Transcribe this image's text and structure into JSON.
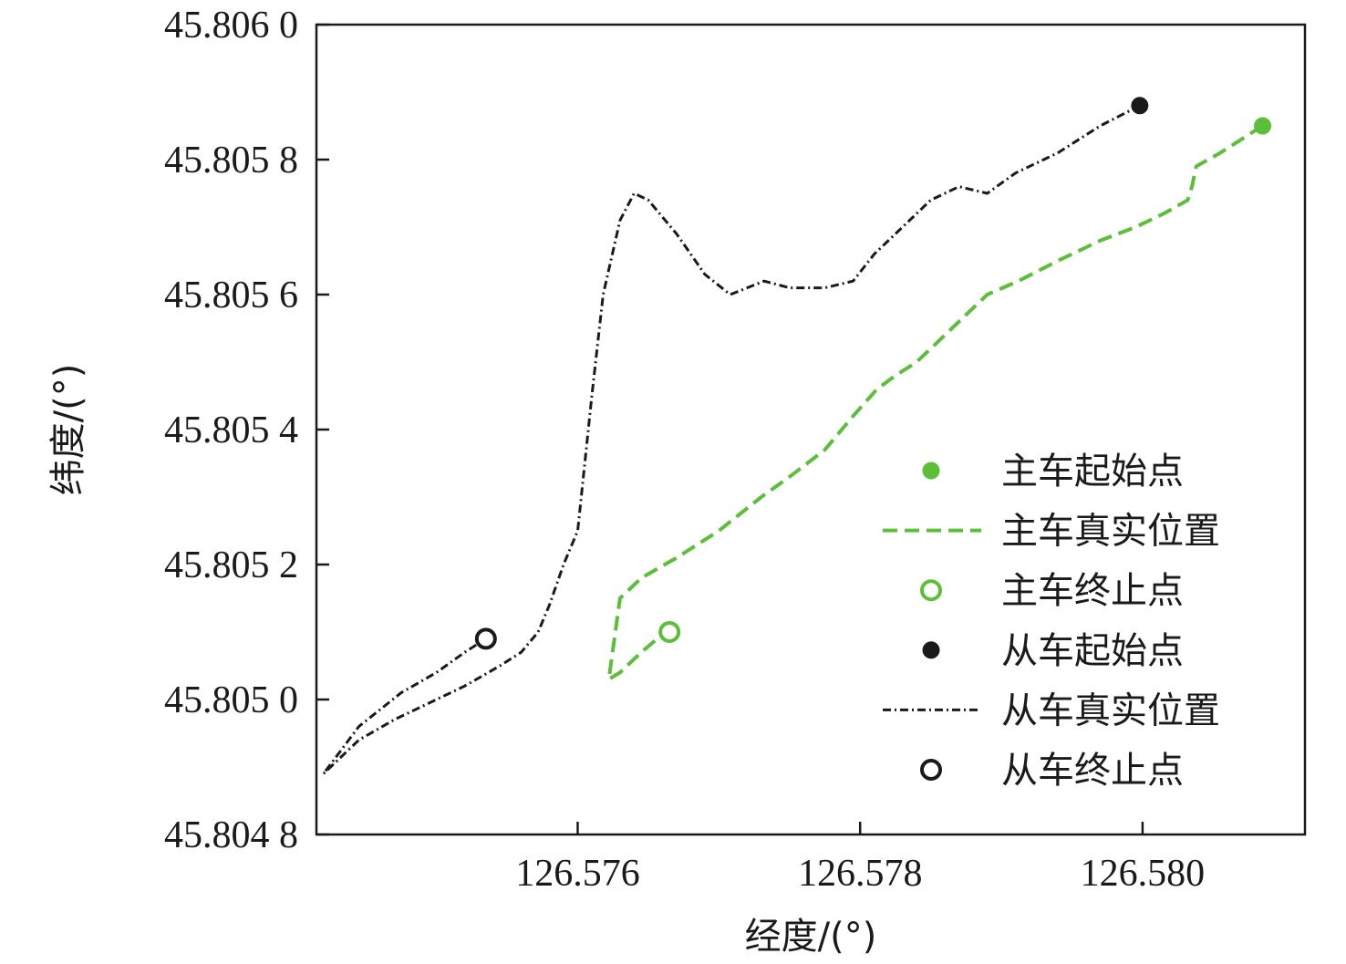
{
  "chart_data": {
    "type": "line",
    "xlabel": "经度/(°)",
    "ylabel": "纬度/(°)",
    "xlim": [
      126.57415,
      126.58115
    ],
    "ylim": [
      45.8048,
      45.806
    ],
    "x_ticks": [
      {
        "value": 126.576,
        "label": "126.576"
      },
      {
        "value": 126.578,
        "label": "126.578"
      },
      {
        "value": 126.58,
        "label": "126.580"
      }
    ],
    "y_ticks": [
      {
        "value": 45.8048,
        "label": "45.804 8"
      },
      {
        "value": 45.805,
        "label": "45.805 0"
      },
      {
        "value": 45.8052,
        "label": "45.805 2"
      },
      {
        "value": 45.8054,
        "label": "45.805 4"
      },
      {
        "value": 45.8056,
        "label": "45.805 6"
      },
      {
        "value": 45.8058,
        "label": "45.805 8"
      },
      {
        "value": 45.806,
        "label": "45.806 0"
      }
    ],
    "grid": false,
    "legend_position": "bottom-right",
    "series": [
      {
        "name": "主车真实位置",
        "style": "dashed",
        "color": "#5cbf3a",
        "points": [
          [
            126.58085,
            45.80585
          ],
          [
            126.58055,
            45.80581
          ],
          [
            126.58038,
            45.80579
          ],
          [
            126.58035,
            45.80576
          ],
          [
            126.58032,
            45.80574
          ],
          [
            126.58015,
            45.80572
          ],
          [
            126.57995,
            45.8057
          ],
          [
            126.5797,
            45.80568
          ],
          [
            126.5794,
            45.80565
          ],
          [
            126.57912,
            45.80562
          ],
          [
            126.5789,
            45.8056
          ],
          [
            126.57875,
            45.80557
          ],
          [
            126.57865,
            45.80555
          ],
          [
            126.57855,
            45.80553
          ],
          [
            126.5784,
            45.8055
          ],
          [
            126.57825,
            45.80548
          ],
          [
            126.57812,
            45.80546
          ],
          [
            126.57795,
            45.80542
          ],
          [
            126.57775,
            45.80537
          ],
          [
            126.5775,
            45.80533
          ],
          [
            126.5773,
            45.8053
          ],
          [
            126.577,
            45.80525
          ],
          [
            126.5767,
            45.80521
          ],
          [
            126.57645,
            45.80518
          ],
          [
            126.5763,
            45.80515
          ],
          [
            126.57622,
            45.80503
          ],
          [
            126.5763,
            45.80504
          ],
          [
            126.57645,
            45.80507
          ],
          [
            126.57662,
            45.8051
          ]
        ]
      },
      {
        "name": "从车真实位置",
        "style": "dashdot",
        "color": "#1a1a1a",
        "points": [
          [
            126.57998,
            45.80588
          ],
          [
            126.5797,
            45.80585
          ],
          [
            126.5794,
            45.80581
          ],
          [
            126.5791,
            45.80578
          ],
          [
            126.5789,
            45.80575
          ],
          [
            126.5787,
            45.80576
          ],
          [
            126.5785,
            45.80574
          ],
          [
            126.5783,
            45.8057
          ],
          [
            126.5781,
            45.80566
          ],
          [
            126.57795,
            45.80562
          ],
          [
            126.57775,
            45.80561
          ],
          [
            126.5775,
            45.80561
          ],
          [
            126.57732,
            45.80562
          ],
          [
            126.5772,
            45.80561
          ],
          [
            126.57708,
            45.8056
          ],
          [
            126.5769,
            45.80563
          ],
          [
            126.5767,
            45.80569
          ],
          [
            126.5765,
            45.80574
          ],
          [
            126.5764,
            45.80575
          ],
          [
            126.5763,
            45.80571
          ],
          [
            126.57618,
            45.8056
          ],
          [
            126.5761,
            45.80545
          ],
          [
            126.576,
            45.80525
          ],
          [
            126.5759,
            45.8052
          ],
          [
            126.5758,
            45.80514
          ],
          [
            126.57572,
            45.8051
          ],
          [
            126.5756,
            45.80507
          ],
          [
            126.57545,
            45.80505
          ],
          [
            126.5752,
            45.80502
          ],
          [
            126.575,
            45.805
          ],
          [
            126.5747,
            45.80497
          ],
          [
            126.57445,
            45.80494
          ],
          [
            126.5742,
            45.80489
          ],
          [
            126.57445,
            45.80496
          ],
          [
            126.57475,
            45.80501
          ],
          [
            126.575,
            45.80504
          ],
          [
            126.5752,
            45.80507
          ],
          [
            126.57535,
            45.80509
          ]
        ]
      }
    ],
    "markers": [
      {
        "name": "主车起始点",
        "x": 126.58085,
        "y": 45.80585,
        "shape": "filled-circle",
        "color": "#5cbf3a"
      },
      {
        "name": "主车终止点",
        "x": 126.57665,
        "y": 45.8051,
        "shape": "hollow-circle",
        "color": "#5cbf3a"
      },
      {
        "name": "从车起始点",
        "x": 126.57998,
        "y": 45.80588,
        "shape": "filled-circle",
        "color": "#1a1a1a"
      },
      {
        "name": "从车终止点",
        "x": 126.57535,
        "y": 45.80509,
        "shape": "hollow-circle",
        "color": "#1a1a1a"
      }
    ],
    "legend": [
      {
        "label": "主车起始点",
        "kind": "filled-circle",
        "color": "#5cbf3a"
      },
      {
        "label": "主车真实位置",
        "kind": "dashed",
        "color": "#5cbf3a"
      },
      {
        "label": "主车终止点",
        "kind": "hollow-circle",
        "color": "#5cbf3a"
      },
      {
        "label": "从车起始点",
        "kind": "filled-circle",
        "color": "#1a1a1a"
      },
      {
        "label": "从车真实位置",
        "kind": "dashdot",
        "color": "#1a1a1a"
      },
      {
        "label": "从车终止点",
        "kind": "hollow-circle",
        "color": "#1a1a1a"
      }
    ]
  }
}
